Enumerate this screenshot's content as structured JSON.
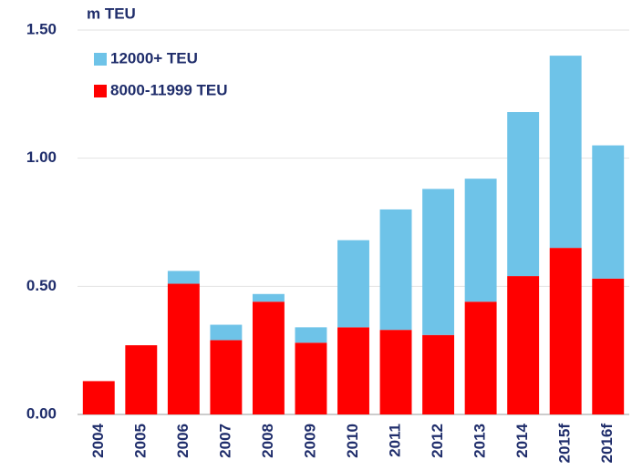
{
  "chart_data": {
    "type": "stacked_bar",
    "y_label": "m TEU",
    "categories": [
      "2004",
      "2005",
      "2006",
      "2007",
      "2008",
      "2009",
      "2010",
      "2011",
      "2012",
      "2013",
      "2014",
      "2015f",
      "2016f"
    ],
    "series": [
      {
        "name": "8000-11999 TEU",
        "color": "#ff0000",
        "values": [
          0.13,
          0.27,
          0.51,
          0.29,
          0.44,
          0.28,
          0.34,
          0.33,
          0.31,
          0.44,
          0.54,
          0.65,
          0.53
        ]
      },
      {
        "name": "12000+ TEU",
        "color": "#6ec3e8",
        "values": [
          0,
          0,
          0.05,
          0.06,
          0.03,
          0.06,
          0.34,
          0.47,
          0.57,
          0.48,
          0.64,
          0.75,
          0.52
        ]
      }
    ],
    "ylim": [
      0,
      1.5
    ],
    "yticks": [
      {
        "value": 0,
        "label": "0.00"
      },
      {
        "value": 0.5,
        "label": "0.50"
      },
      {
        "value": 1,
        "label": "1.00"
      },
      {
        "value": 1.5,
        "label": "1.50"
      }
    ],
    "grid": true,
    "legend": "top-left"
  }
}
